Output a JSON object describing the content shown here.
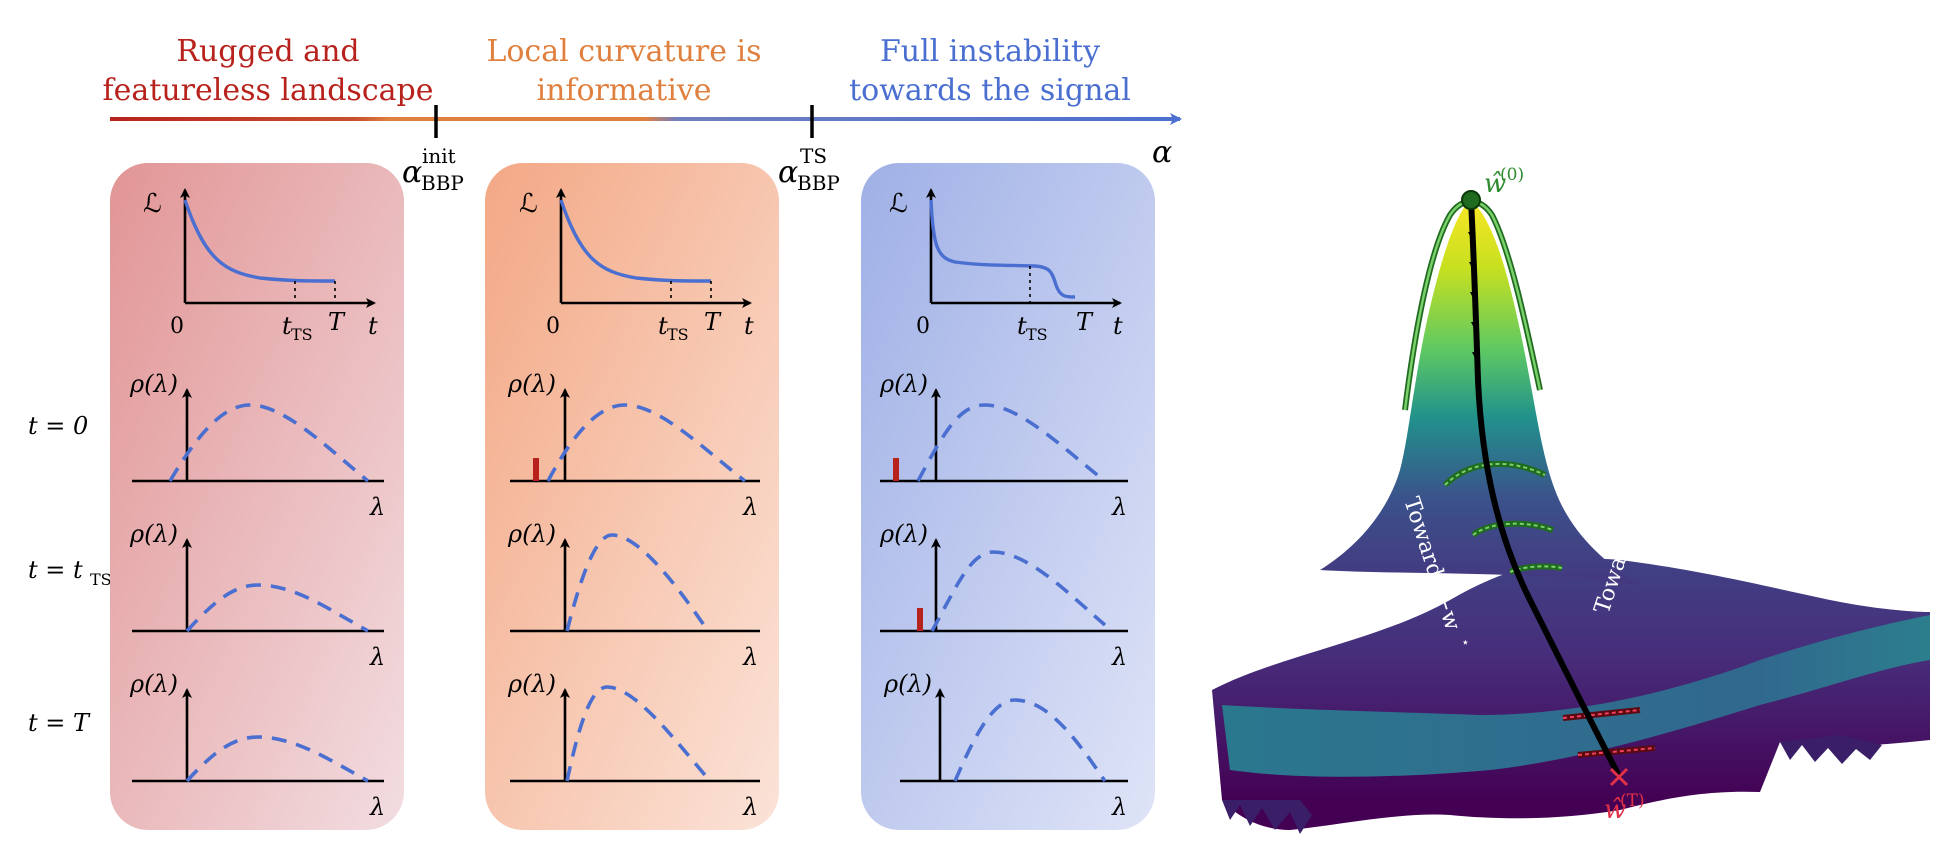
{
  "phases": [
    {
      "line1": "Rugged and",
      "line2": "featureless landscape",
      "color": "#b8221d"
    },
    {
      "line1": "Local curvature is",
      "line2": "informative",
      "color": "#e0803f"
    },
    {
      "line1": "Full instability",
      "line2": "towards the signal",
      "color": "#4a6fd0"
    }
  ],
  "thresholds": {
    "init": {
      "base": "α",
      "sup": "init",
      "sub": "BBP"
    },
    "ts": {
      "base": "α",
      "sup": "TS",
      "sub": "BBP"
    },
    "axis_end": "α"
  },
  "row_labels": {
    "t0": "t = 0",
    "tts_base": "t = t",
    "tts_sub": "TS",
    "tT": "t = T"
  },
  "loss_plot": {
    "ylabel": "ℒ",
    "origin": "0",
    "tts_base": "t",
    "tts_sub": "TS",
    "T": "T",
    "xlabel": "t"
  },
  "spectrum_plot": {
    "ylabel": "ρ(λ)",
    "xlabel": "λ"
  },
  "landscape": {
    "start_label": "ŵ",
    "start_sup": "(0)",
    "end_label": "ŵ",
    "end_sup": "(T)",
    "toward_neg": "Towards −w",
    "toward_pos": "Towards w",
    "star": "⋆",
    "start_color": "#2e8b2e",
    "end_color": "#e0304a",
    "colormap": "viridis"
  }
}
